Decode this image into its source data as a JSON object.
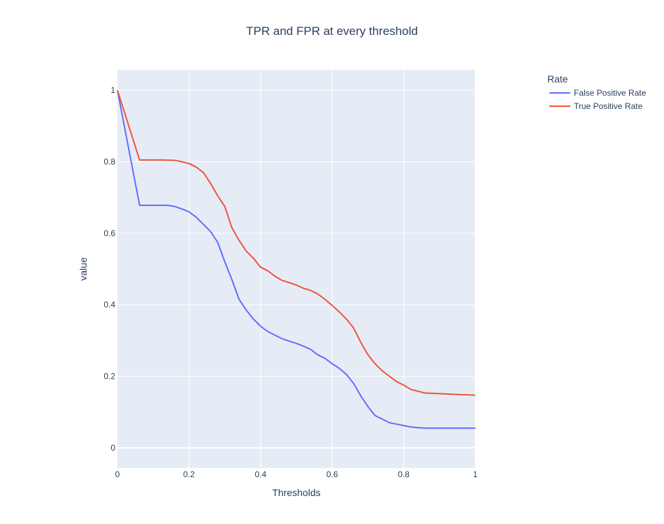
{
  "chart_data": {
    "type": "line",
    "title": "TPR and FPR at every threshold",
    "xlabel": "Thresholds",
    "ylabel": "value",
    "xlim": [
      0,
      1
    ],
    "ylim": [
      -0.057,
      1.057
    ],
    "x_ticks": [
      0,
      0.2,
      0.4,
      0.6,
      0.8,
      1
    ],
    "x_tick_labels": [
      "0",
      "0.2",
      "0.4",
      "0.6",
      "0.8",
      "1"
    ],
    "y_ticks": [
      0,
      0.2,
      0.4,
      0.6,
      0.8,
      1
    ],
    "y_tick_labels": [
      "0",
      "0.2",
      "0.4",
      "0.6",
      "0.8",
      "1"
    ],
    "grid": true,
    "legend": {
      "title": "Rate",
      "position": "top-right, outside plot"
    },
    "series": [
      {
        "name": "False Positive Rate",
        "color": "#636efa",
        "x": [
          0,
          0.062,
          0.1,
          0.14,
          0.16,
          0.18,
          0.2,
          0.22,
          0.24,
          0.26,
          0.28,
          0.3,
          0.32,
          0.34,
          0.36,
          0.38,
          0.4,
          0.42,
          0.44,
          0.46,
          0.48,
          0.5,
          0.52,
          0.54,
          0.56,
          0.58,
          0.6,
          0.62,
          0.64,
          0.66,
          0.68,
          0.7,
          0.72,
          0.74,
          0.76,
          0.78,
          0.8,
          0.82,
          0.84,
          0.86,
          0.88,
          1.0
        ],
        "y": [
          1.0,
          0.678,
          0.678,
          0.678,
          0.675,
          0.668,
          0.66,
          0.645,
          0.625,
          0.605,
          0.575,
          0.52,
          0.47,
          0.415,
          0.385,
          0.36,
          0.34,
          0.325,
          0.315,
          0.305,
          0.298,
          0.292,
          0.284,
          0.275,
          0.26,
          0.25,
          0.235,
          0.222,
          0.205,
          0.18,
          0.145,
          0.115,
          0.09,
          0.08,
          0.07,
          0.066,
          0.062,
          0.058,
          0.056,
          0.055,
          0.055,
          0.055
        ]
      },
      {
        "name": "True Positive Rate",
        "color": "#ef553b",
        "x": [
          0,
          0.062,
          0.1,
          0.12,
          0.16,
          0.18,
          0.2,
          0.22,
          0.24,
          0.26,
          0.28,
          0.3,
          0.32,
          0.34,
          0.36,
          0.38,
          0.4,
          0.42,
          0.44,
          0.46,
          0.48,
          0.5,
          0.52,
          0.54,
          0.56,
          0.58,
          0.6,
          0.62,
          0.64,
          0.66,
          0.68,
          0.7,
          0.72,
          0.74,
          0.76,
          0.78,
          0.8,
          0.82,
          0.84,
          0.86,
          0.88,
          1.0
        ],
        "y": [
          1.0,
          0.805,
          0.805,
          0.805,
          0.804,
          0.8,
          0.795,
          0.785,
          0.77,
          0.74,
          0.705,
          0.675,
          0.615,
          0.58,
          0.55,
          0.53,
          0.505,
          0.495,
          0.48,
          0.468,
          0.462,
          0.455,
          0.446,
          0.44,
          0.43,
          0.415,
          0.398,
          0.38,
          0.36,
          0.335,
          0.295,
          0.26,
          0.235,
          0.215,
          0.2,
          0.185,
          0.175,
          0.163,
          0.158,
          0.153,
          0.152,
          0.147
        ]
      }
    ]
  }
}
